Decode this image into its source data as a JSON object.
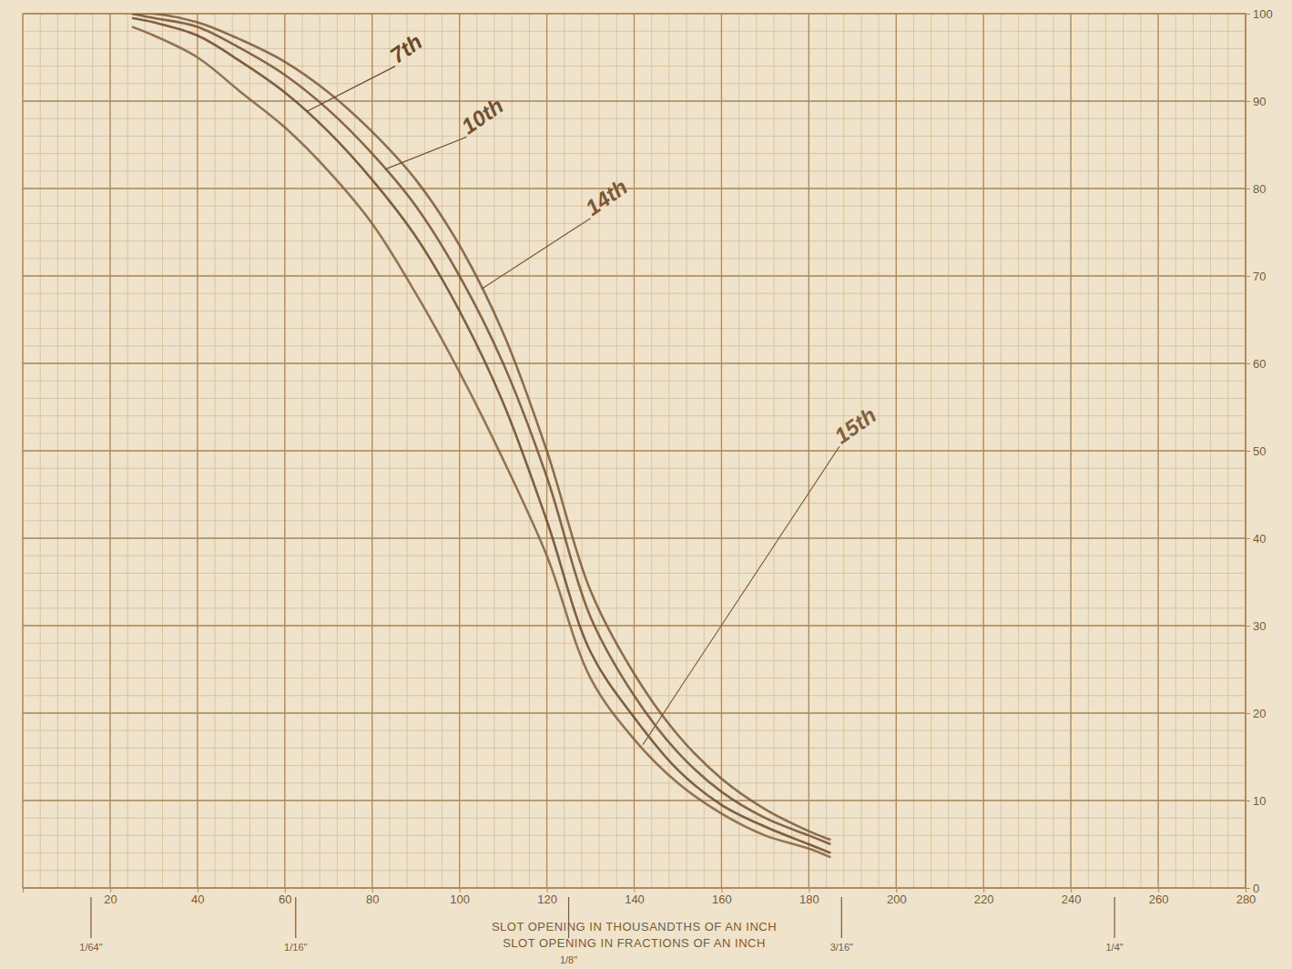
{
  "chart_data": {
    "type": "line",
    "xlabel": "SLOT OPENING IN THOUSANDTHS OF AN INCH",
    "x2label": "SLOT OPENING IN FRACTIONS OF AN INCH",
    "x": [
      25,
      30,
      40,
      50,
      60,
      70,
      80,
      90,
      100,
      110,
      120,
      130,
      140,
      150,
      160,
      170,
      180,
      185
    ],
    "series": [
      {
        "name": "7th",
        "color": "#6a4827",
        "values": [
          99.5,
          99,
          97.5,
          94.5,
          91,
          86.5,
          81,
          74.5,
          66,
          55.5,
          42,
          27,
          19.5,
          13.5,
          9.5,
          7,
          5,
          4
        ],
        "label": {
          "x": 85.3,
          "y": 94,
          "x_to": 65,
          "y_to": 88.8
        }
      },
      {
        "name": "10th",
        "color": "#735030",
        "values": [
          100,
          99.5,
          98.5,
          96,
          93,
          89,
          84,
          78,
          70,
          60,
          47,
          31,
          22,
          15.5,
          11,
          8,
          6,
          5
        ],
        "label": {
          "x": 101.6,
          "y": 85.9,
          "x_to": 83,
          "y_to": 82.2
        }
      },
      {
        "name": "14th",
        "color": "#7b5836",
        "values": [
          100,
          100,
          99,
          97,
          94.5,
          91,
          86.5,
          81,
          73.5,
          63.5,
          50,
          34,
          24.5,
          17.5,
          12.5,
          9,
          6.5,
          5.5
        ],
        "label": {
          "x": 130,
          "y": 76.6,
          "x_to": 105,
          "y_to": 68.5
        }
      },
      {
        "name": "15th",
        "color": "#82603d",
        "values": [
          98.5,
          97.5,
          95,
          91,
          87,
          82,
          76,
          68,
          59,
          49,
          38,
          24,
          17,
          12,
          8.5,
          6,
          4.5,
          3.5
        ],
        "label": {
          "x": 187,
          "y": 50.5,
          "x_to": 142,
          "y_to": 16.4
        }
      }
    ],
    "xlim": [
      0,
      280
    ],
    "xticks": [
      20,
      40,
      60,
      80,
      100,
      120,
      140,
      160,
      180,
      200,
      220,
      240,
      260,
      280
    ],
    "ylim": [
      0,
      100
    ],
    "yticks": [
      0,
      10,
      20,
      30,
      40,
      50,
      60,
      70,
      80,
      90,
      100
    ],
    "fraction_ticks": [
      {
        "value": 15.625,
        "label": "1/64\""
      },
      {
        "value": 62.5,
        "label": "1/16\""
      },
      {
        "value": 125,
        "label": "1/8\""
      },
      {
        "value": 187.5,
        "label": "3/16\""
      },
      {
        "value": 250,
        "label": "1/4\""
      }
    ],
    "grid": true
  }
}
